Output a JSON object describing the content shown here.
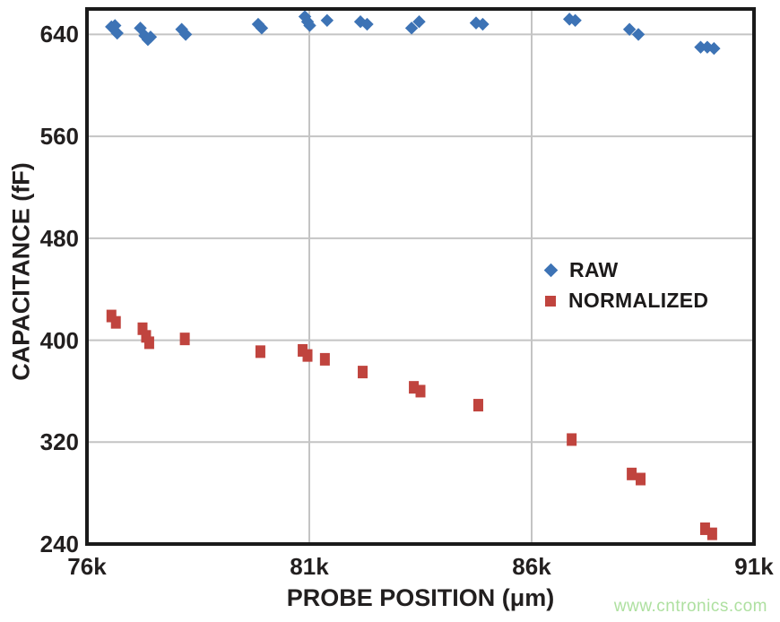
{
  "chart_data": {
    "type": "scatter",
    "title": "",
    "xlabel": "PROBE POSITION (μm)",
    "ylabel": "CAPACITANCE (fF)",
    "xlim": [
      76000,
      91000
    ],
    "ylim": [
      240,
      660
    ],
    "grid": true,
    "legend_position": "inside-right",
    "x_ticks": [
      {
        "value": 76000,
        "label": "76k"
      },
      {
        "value": 81000,
        "label": "81k"
      },
      {
        "value": 86000,
        "label": "86k"
      },
      {
        "value": 91000,
        "label": "91k"
      }
    ],
    "y_ticks": [
      {
        "value": 640,
        "label": "640"
      },
      {
        "value": 560,
        "label": "560"
      },
      {
        "value": 480,
        "label": "480"
      },
      {
        "value": 400,
        "label": "400"
      },
      {
        "value": 320,
        "label": "320"
      },
      {
        "value": 240,
        "label": "240"
      }
    ],
    "series": [
      {
        "name": "RAW",
        "marker": "diamond",
        "color": "#3d73b5",
        "points": [
          [
            76550,
            646
          ],
          [
            76630,
            647
          ],
          [
            76680,
            641
          ],
          [
            77200,
            645
          ],
          [
            77300,
            639
          ],
          [
            77370,
            636
          ],
          [
            77430,
            638
          ],
          [
            78130,
            644
          ],
          [
            78220,
            640
          ],
          [
            79850,
            648
          ],
          [
            79930,
            645
          ],
          [
            80900,
            654
          ],
          [
            80960,
            650
          ],
          [
            81010,
            647
          ],
          [
            81400,
            651
          ],
          [
            82150,
            650
          ],
          [
            82300,
            648
          ],
          [
            83300,
            645
          ],
          [
            83470,
            650
          ],
          [
            84750,
            649
          ],
          [
            84900,
            648
          ],
          [
            86850,
            652
          ],
          [
            86980,
            651
          ],
          [
            88200,
            644
          ],
          [
            88400,
            640
          ],
          [
            89800,
            630
          ],
          [
            89950,
            630
          ],
          [
            90100,
            629
          ]
        ]
      },
      {
        "name": "NORMALIZED",
        "marker": "square",
        "color": "#c0443e",
        "points": [
          [
            76550,
            419
          ],
          [
            76650,
            414
          ],
          [
            77250,
            409
          ],
          [
            77330,
            403
          ],
          [
            77400,
            398
          ],
          [
            78200,
            401
          ],
          [
            79900,
            391
          ],
          [
            80850,
            392
          ],
          [
            80960,
            388
          ],
          [
            81350,
            385
          ],
          [
            82200,
            375
          ],
          [
            83350,
            363
          ],
          [
            83500,
            360
          ],
          [
            84800,
            349
          ],
          [
            86900,
            322
          ],
          [
            88250,
            295
          ],
          [
            88450,
            291
          ],
          [
            89900,
            252
          ],
          [
            90060,
            248
          ]
        ]
      }
    ]
  },
  "style_colors": {
    "raw_blue": "#3d73b5",
    "normalized_red": "#c0443e",
    "gridline_gray": "#c4c4c4",
    "frame_black": "#1a1a1a",
    "watermark_green": "#aee0a0"
  },
  "watermark": "www.cntronics.com"
}
